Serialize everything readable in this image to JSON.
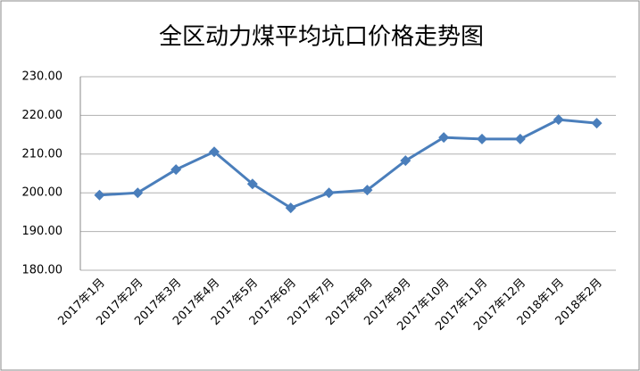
{
  "chart_data": {
    "type": "line",
    "title": "全区动力煤平均坑口价格走势图",
    "categories": [
      "2017年1月",
      "2017年2月",
      "2017年3月",
      "2017年4月",
      "2017年5月",
      "2017年6月",
      "2017年7月",
      "2017年8月",
      "2017年9月",
      "2017年10月",
      "2017年11月",
      "2017年12月",
      "2018年1月",
      "2018年2月"
    ],
    "series": [
      {
        "name": "全区动力煤平均坑口价格",
        "color": "#4a7ebb",
        "values": [
          199.4,
          200.0,
          206.0,
          210.6,
          202.3,
          196.1,
          200.0,
          200.7,
          208.3,
          214.3,
          213.9,
          213.9,
          218.9,
          218.0
        ]
      }
    ],
    "ylim": [
      180,
      230
    ],
    "yticks": [
      {
        "value": 180,
        "label": "180.00"
      },
      {
        "value": 190,
        "label": "190.00"
      },
      {
        "value": 200,
        "label": "200.00"
      },
      {
        "value": 210,
        "label": "210.00"
      },
      {
        "value": 220,
        "label": "220.00"
      },
      {
        "value": 230,
        "label": "230.00"
      }
    ],
    "grid": true
  }
}
